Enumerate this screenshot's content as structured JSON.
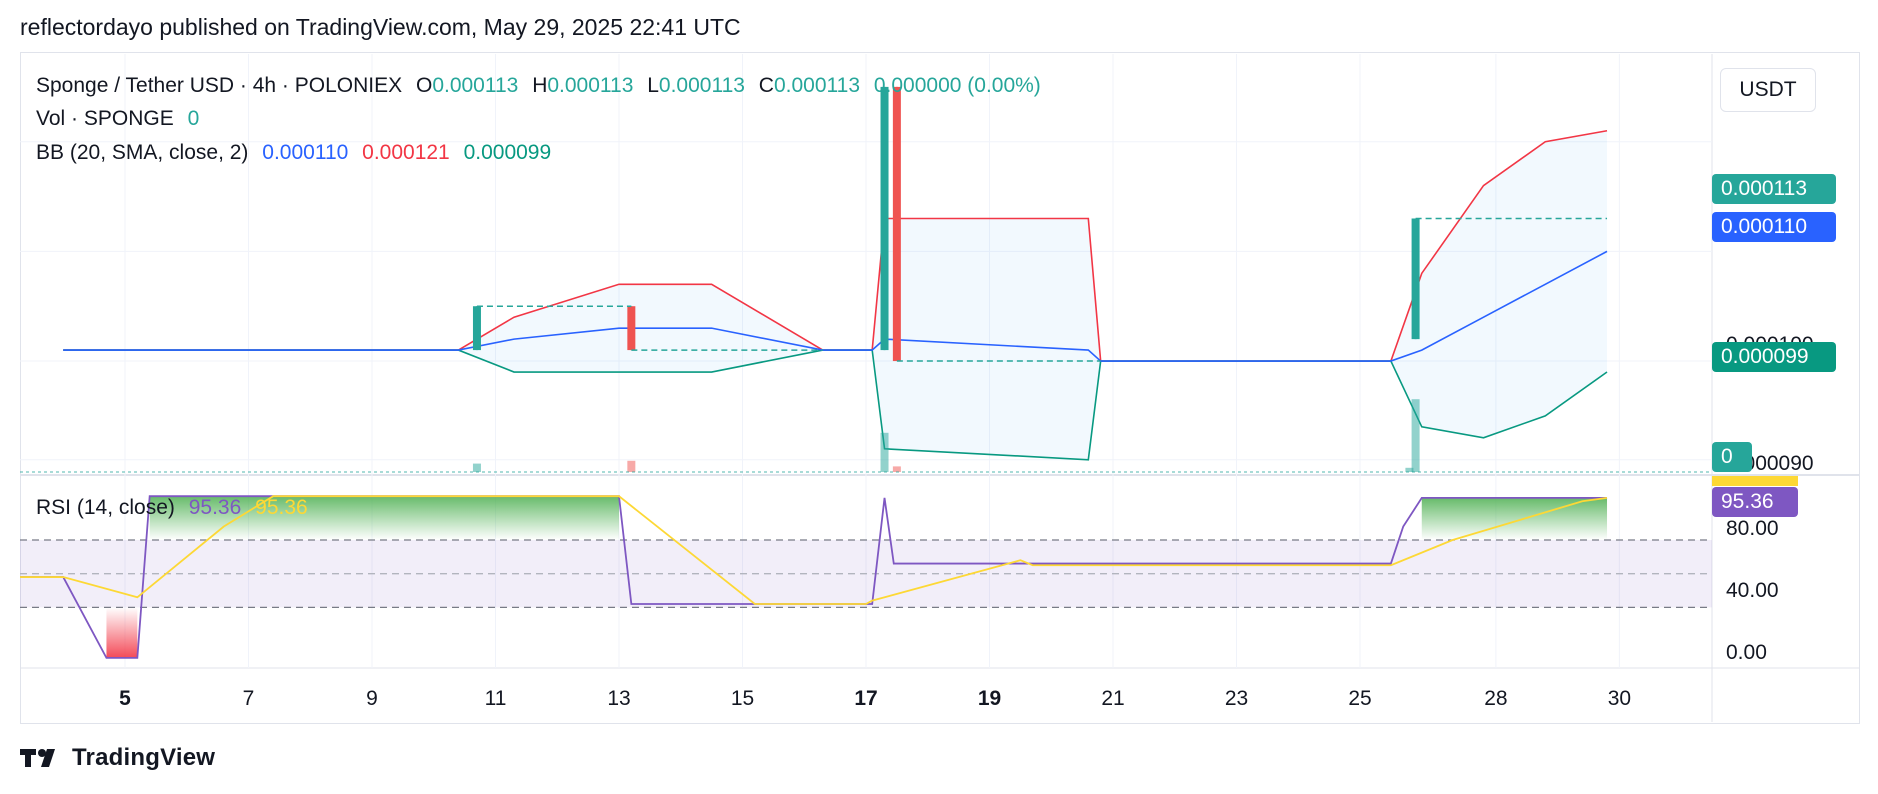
{
  "header": {
    "text": "reflectordayo published on TradingView.com, May 29, 2025 22:41 UTC"
  },
  "legend": {
    "symbol": "Sponge / Tether USD · 4h · POLONIEX",
    "o_label": "O",
    "o_value": "0.000113",
    "h_label": "H",
    "h_value": "0.000113",
    "l_label": "L",
    "l_value": "0.000113",
    "c_label": "C",
    "c_value": "0.000113",
    "change": "0.000000 (0.00%)",
    "vol_label": "Vol · SPONGE",
    "vol_value": "0",
    "bb_label": "BB (20, SMA, close, 2)",
    "bb_basis": "0.000110",
    "bb_upper": "0.000121",
    "bb_lower": "0.000099",
    "rsi_label": "RSI (14, close)",
    "rsi_value": "95.36",
    "rsi_ma_value": "95.36"
  },
  "price_axis": {
    "unit": "USDT",
    "tags": {
      "last": "0.000113",
      "basis": "0.000110",
      "lower": "0.000099",
      "volume": "0",
      "rsi": "95.36"
    },
    "ticks": [
      "0.000100",
      "0.000090"
    ]
  },
  "rsi_axis": {
    "ticks": [
      "80.00",
      "40.00",
      "0.00"
    ]
  },
  "time_axis": {
    "ticks": [
      "5",
      "7",
      "9",
      "11",
      "13",
      "15",
      "17",
      "19",
      "21",
      "23",
      "25",
      "28",
      "30"
    ],
    "bold": [
      "5",
      "17",
      "19"
    ]
  },
  "colors": {
    "up": "#26a69a",
    "down": "#ef5350",
    "basis": "#2962ff",
    "upper": "#f23645",
    "lower": "#089981",
    "rsi": "#7e57c2",
    "rsi_ma": "#fdd835"
  },
  "chart_data": [
    {
      "type": "candlestick",
      "title": "Sponge / Tether USD · 4h · POLONIEX",
      "x_unit": "day of May 2025",
      "candles": [
        {
          "x": 10.7,
          "open": 0.000101,
          "high": 0.000105,
          "low": 0.000101,
          "close": 0.000105,
          "direction": "up"
        },
        {
          "x": 13.2,
          "open": 0.000105,
          "high": 0.000105,
          "low": 0.000101,
          "close": 0.000101,
          "direction": "down"
        },
        {
          "x": 17.3,
          "open": 0.000101,
          "high": 0.000125,
          "low": 0.000101,
          "close": 0.000125,
          "direction": "up"
        },
        {
          "x": 17.5,
          "open": 0.000125,
          "high": 0.000125,
          "low": 0.0001,
          "close": 0.0001,
          "direction": "down"
        },
        {
          "x": 25.9,
          "open": 0.000102,
          "high": 0.000113,
          "low": 0.000102,
          "close": 0.000113,
          "direction": "up"
        }
      ],
      "bollinger": {
        "x": [
          4,
          10.4,
          11.3,
          13.0,
          14.5,
          16.3,
          17.1,
          17.3,
          20.6,
          20.8,
          25.5,
          26.0,
          27.0,
          28.0,
          29.0
        ],
        "basis": [
          0.000101,
          0.000101,
          0.000102,
          0.000103,
          0.000103,
          0.000101,
          0.000101,
          0.000102,
          0.000101,
          0.0001,
          0.0001,
          0.000101,
          0.000104,
          0.000107,
          0.00011
        ],
        "upper": [
          0.000101,
          0.000101,
          0.000104,
          0.000107,
          0.000107,
          0.000101,
          0.000101,
          0.000113,
          0.000113,
          0.0001,
          0.0001,
          0.000108,
          0.000116,
          0.00012,
          0.000121
        ],
        "lower": [
          0.000101,
          0.000101,
          9.9e-05,
          9.9e-05,
          9.9e-05,
          0.000101,
          0.000101,
          9.2e-05,
          9.1e-05,
          0.0001,
          0.0001,
          9.4e-05,
          9.3e-05,
          9.5e-05,
          9.9e-05
        ]
      },
      "volume": [
        {
          "x": 10.7,
          "value": 0.3,
          "direction": "up"
        },
        {
          "x": 13.2,
          "value": 0.4,
          "direction": "down"
        },
        {
          "x": 17.3,
          "value": 1.4,
          "direction": "up"
        },
        {
          "x": 17.5,
          "value": 0.2,
          "direction": "down"
        },
        {
          "x": 25.8,
          "value": 0.15,
          "direction": "up"
        },
        {
          "x": 25.9,
          "value": 2.6,
          "direction": "up"
        }
      ],
      "ylim": [
        8.97e-05,
        0.000128
      ],
      "xlim": [
        3.3,
        30.7
      ]
    },
    {
      "type": "line",
      "title": "RSI (14, close)",
      "x_unit": "day of May 2025",
      "series": [
        {
          "name": "RSI",
          "x": [
            3.3,
            4.0,
            4.7,
            5.2,
            5.4,
            13.0,
            13.2,
            15.0,
            17.1,
            17.3,
            17.45,
            17.9,
            25.5,
            25.7,
            26.0,
            29.0
          ],
          "values": [
            48,
            48,
            0,
            0,
            96,
            96,
            32,
            32,
            32,
            95,
            56,
            56,
            56,
            78,
            95,
            95
          ]
        },
        {
          "name": "RSI-based MA",
          "x": [
            3.3,
            4.0,
            5.2,
            6.6,
            7.4,
            13.0,
            15.2,
            17.0,
            17.1,
            19.5,
            19.7,
            25.5,
            26.5,
            28.6,
            29.0
          ],
          "values": [
            48,
            48,
            36,
            78,
            96,
            96,
            32,
            32,
            34,
            58,
            55,
            55,
            70,
            93,
            95
          ]
        }
      ],
      "levels": [
        70,
        50,
        30
      ],
      "ylim": [
        -6,
        108
      ],
      "xlim": [
        3.3,
        30.7
      ]
    }
  ]
}
